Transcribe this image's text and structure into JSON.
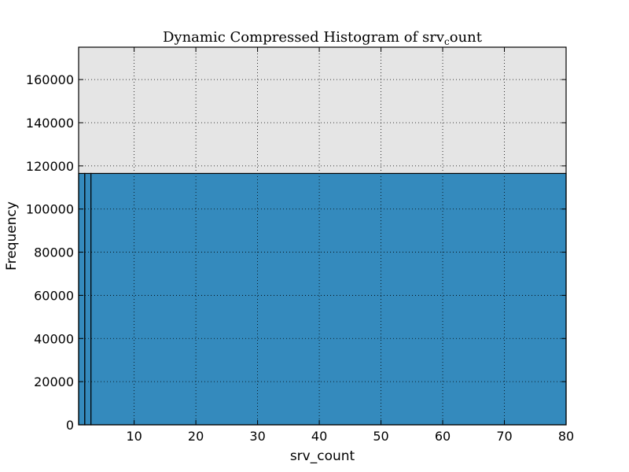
{
  "chart_data": {
    "type": "bar",
    "title": "Dynamic Compressed Histogram of srv",
    "title_subscript": "c",
    "title_suffix": "ount",
    "xlabel": "srv_count",
    "ylabel": "Frequency",
    "xlim": [
      1,
      80
    ],
    "ylim": [
      0,
      175000
    ],
    "xticks": [
      10,
      20,
      30,
      40,
      50,
      60,
      70,
      80
    ],
    "yticks": [
      0,
      20000,
      40000,
      60000,
      80000,
      100000,
      120000,
      140000,
      160000
    ],
    "grid": true,
    "bins": [
      {
        "x0": 1,
        "x1": 2,
        "value": 116500
      },
      {
        "x0": 2,
        "x1": 3,
        "value": 116500
      },
      {
        "x0": 3,
        "x1": 80,
        "value": 116500
      }
    ],
    "colors": {
      "bar": "#348abd",
      "plot_background": "#e5e5e5",
      "bar_edge": "#000000",
      "grid": "#000000"
    }
  }
}
